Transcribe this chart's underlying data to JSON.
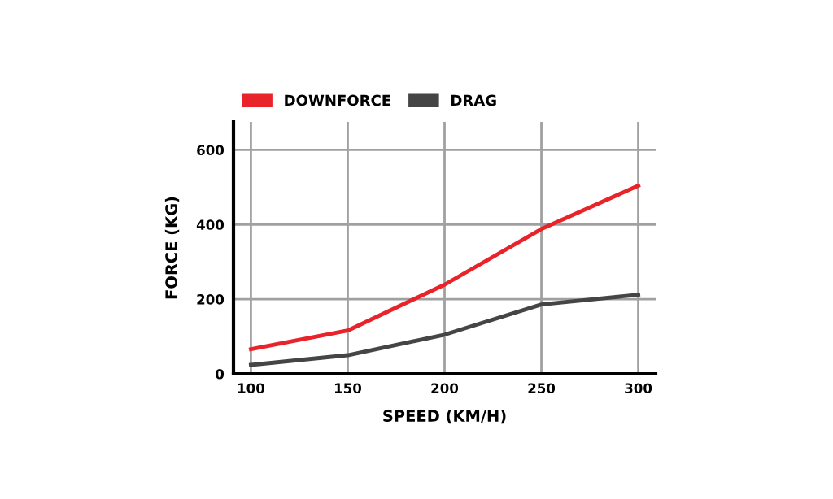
{
  "chart_data": {
    "type": "line",
    "xlabel": "SPEED (KM/H)",
    "ylabel": "FORCE (KG)",
    "x": [
      100,
      150,
      200,
      250,
      300
    ],
    "series": [
      {
        "name": "DOWNFORCE",
        "color": "#e8232a",
        "values": [
          66,
          116,
          239,
          388,
          504
        ]
      },
      {
        "name": "DRAG",
        "color": "#454545",
        "values": [
          24,
          50,
          105,
          186,
          212
        ]
      }
    ],
    "xlim": [
      91,
      309
    ],
    "ylim": [
      0,
      675
    ],
    "xticks": [
      100,
      150,
      200,
      250,
      300
    ],
    "yticks": [
      0,
      200,
      400,
      600
    ],
    "grid": true,
    "legend": "top left",
    "marker": "none",
    "line_style": "solid"
  }
}
